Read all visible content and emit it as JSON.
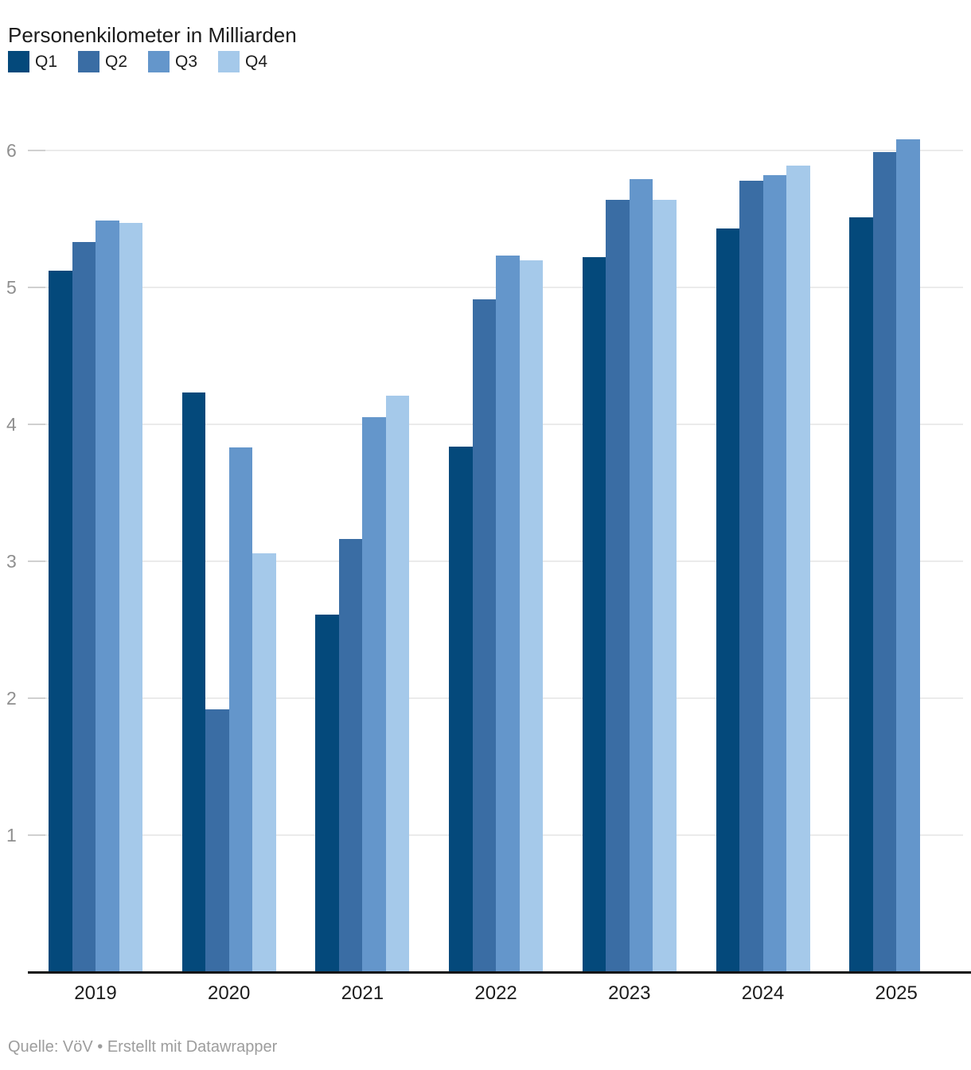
{
  "header": {
    "title": "Personenkilometer in Milliarden"
  },
  "chart_data": {
    "type": "bar",
    "title": "Personenkilometer in Milliarden",
    "categories": [
      "2019",
      "2020",
      "2021",
      "2022",
      "2023",
      "2024",
      "2025"
    ],
    "series": [
      {
        "name": "Q1",
        "color": "#04497b",
        "values": [
          5.12,
          4.23,
          2.61,
          3.84,
          5.22,
          5.43,
          5.51
        ]
      },
      {
        "name": "Q2",
        "color": "#3a6da4",
        "values": [
          5.33,
          1.92,
          3.16,
          4.91,
          5.64,
          5.78,
          5.99
        ]
      },
      {
        "name": "Q3",
        "color": "#6496cb",
        "values": [
          5.49,
          3.83,
          4.05,
          5.23,
          5.79,
          5.82,
          6.08
        ]
      },
      {
        "name": "Q4",
        "color": "#a5c9ea",
        "values": [
          5.47,
          3.06,
          4.21,
          5.2,
          5.64,
          5.89,
          null
        ]
      }
    ],
    "ylabel": "",
    "xlabel": "",
    "ylim": [
      0,
      6.24
    ],
    "yticks": [
      1,
      2,
      3,
      4,
      5,
      6
    ],
    "grid": true,
    "legend_position": "top-left"
  },
  "footer": {
    "text": "Quelle: VöV • Erstellt mit Datawrapper"
  }
}
